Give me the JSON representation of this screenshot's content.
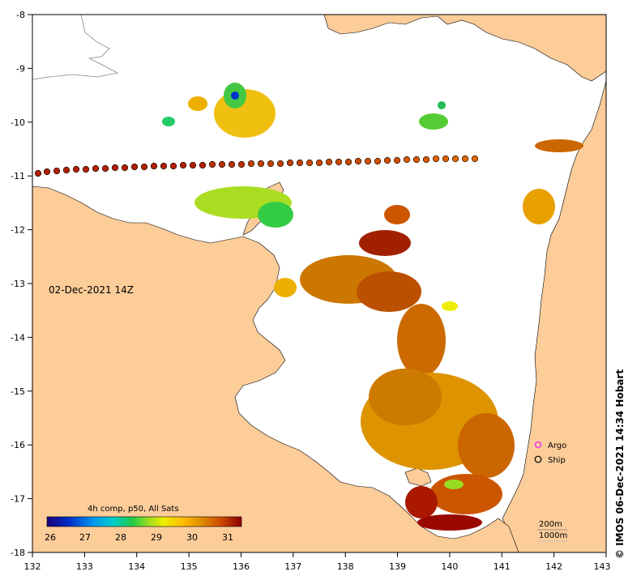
{
  "map": {
    "datetime_label": "02-Dec-2021 14Z",
    "credit": "© IMOS 06-Dec-2021 14:34 Hobart",
    "lon_ticks": [
      "132",
      "133",
      "134",
      "135",
      "136",
      "137",
      "138",
      "139",
      "140",
      "141",
      "142",
      "143"
    ],
    "lat_ticks": [
      "-8",
      "-9",
      "-10",
      "-11",
      "-12",
      "-13",
      "-14",
      "-15",
      "-16",
      "-17",
      "-18"
    ],
    "colorbar": {
      "title": "4h comp, p50, All Sats",
      "ticks": [
        "26",
        "27",
        "28",
        "29",
        "30",
        "31"
      ],
      "range": [
        25.6,
        31.8
      ]
    },
    "legend": {
      "argo": "Argo",
      "ship": "Ship",
      "argo_color": "#e83fe0"
    },
    "depth_labels": [
      "200m",
      "1000m"
    ],
    "land_color": "#fccc99",
    "sea_color": "#ffffff"
  }
}
